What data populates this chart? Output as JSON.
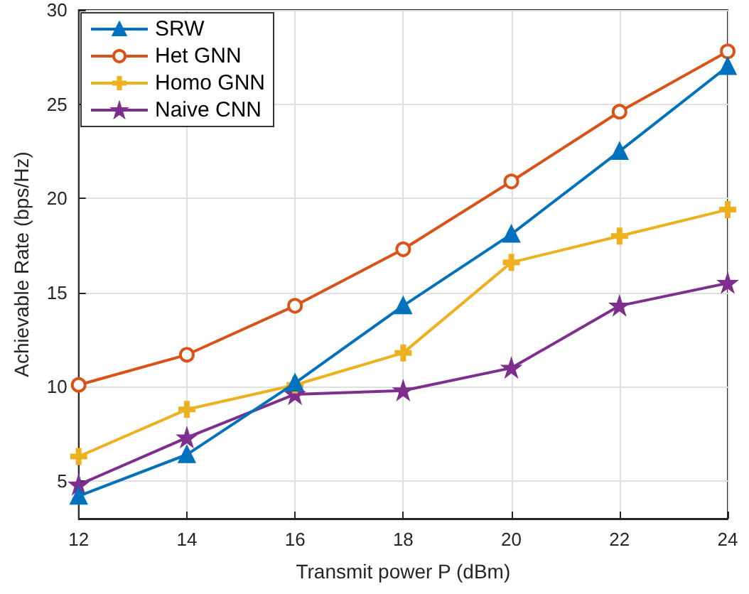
{
  "chart_data": {
    "type": "line",
    "xlabel": "Transmit power P (dBm)",
    "ylabel": "Achievable Rate (bps/Hz)",
    "x": [
      12,
      14,
      16,
      18,
      20,
      22,
      24
    ],
    "series": [
      {
        "name": "SRW",
        "color": "#0072bd",
        "marker": "triangle",
        "values": [
          4.2,
          6.4,
          10.2,
          14.3,
          18.1,
          22.5,
          27.0
        ]
      },
      {
        "name": "Het GNN",
        "color": "#d95319",
        "marker": "circle",
        "values": [
          10.1,
          11.7,
          14.3,
          17.3,
          20.9,
          24.6,
          27.8
        ]
      },
      {
        "name": "Homo GNN",
        "color": "#edb120",
        "marker": "cross",
        "values": [
          6.3,
          8.8,
          10.1,
          11.8,
          16.6,
          18.0,
          19.4
        ]
      },
      {
        "name": "Naive CNN",
        "color": "#7e2f8e",
        "marker": "star",
        "values": [
          4.8,
          7.3,
          9.6,
          9.8,
          11.0,
          14.3,
          15.5
        ]
      }
    ],
    "xlim": [
      12,
      24
    ],
    "xticks": [
      12,
      14,
      16,
      18,
      20,
      22,
      24
    ],
    "ylim": [
      3,
      30
    ],
    "yticks": [
      5,
      10,
      15,
      20,
      25,
      30
    ],
    "grid": true,
    "legend": "top left",
    "line_style": "solid"
  }
}
